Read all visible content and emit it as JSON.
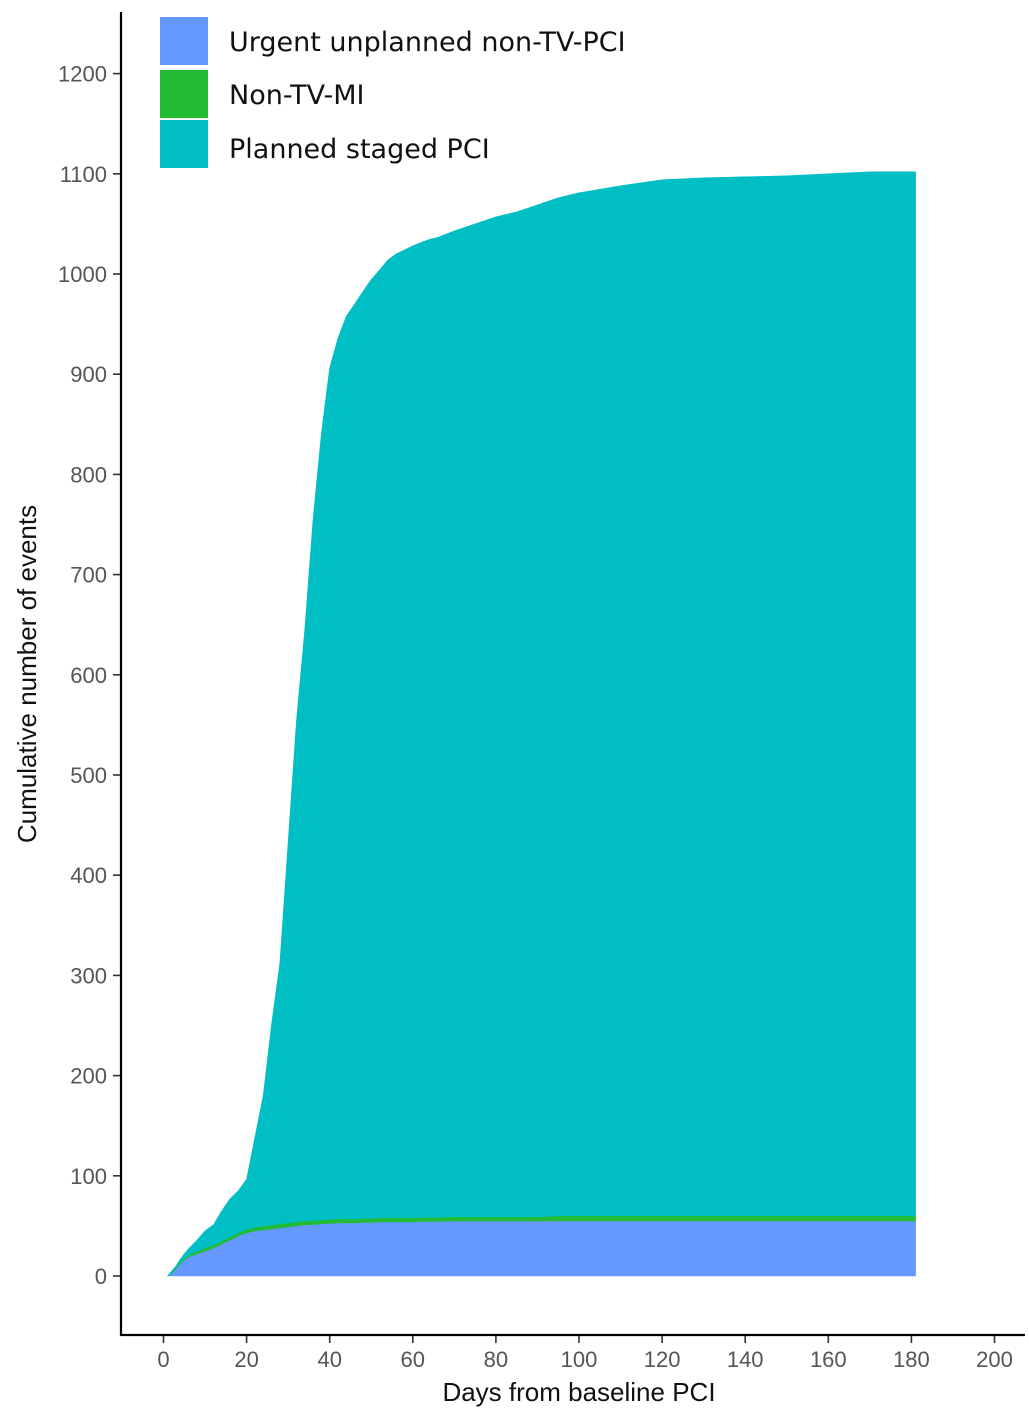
{
  "chart_data": {
    "type": "area",
    "stacked": true,
    "title": "",
    "xlabel": "Days from baseline PCI",
    "ylabel": "Cumulative number of events",
    "xlim": [
      -10,
      205
    ],
    "ylim": [
      -60,
      1260
    ],
    "x_ticks": [
      0,
      20,
      40,
      60,
      80,
      100,
      120,
      140,
      160,
      180,
      200
    ],
    "y_ticks": [
      0,
      100,
      200,
      300,
      400,
      500,
      600,
      700,
      800,
      900,
      1000,
      1100,
      1200
    ],
    "grid": false,
    "legend_position": "top-left",
    "x": [
      1,
      2,
      3,
      4,
      5,
      6,
      8,
      10,
      12,
      14,
      16,
      18,
      20,
      22,
      24,
      26,
      28,
      30,
      32,
      34,
      36,
      38,
      40,
      42,
      44,
      46,
      48,
      50,
      52,
      54,
      56,
      58,
      60,
      62,
      64,
      66,
      70,
      75,
      80,
      85,
      90,
      95,
      100,
      110,
      120,
      130,
      140,
      150,
      160,
      170,
      181
    ],
    "series": [
      {
        "name": "Urgent unplanned non-TV-PCI",
        "color": "#6699ff",
        "values": [
          0,
          3,
          7,
          12,
          16,
          19,
          22,
          25,
          28,
          32,
          36,
          40,
          43,
          45,
          46,
          47,
          48,
          49,
          50,
          51,
          51.5,
          52,
          52.5,
          53,
          53,
          53,
          53.5,
          53.5,
          54,
          54,
          54,
          54,
          54,
          54.5,
          54.5,
          54.5,
          55,
          55,
          55,
          55,
          55,
          55,
          55,
          55,
          55,
          55,
          55,
          55,
          55,
          55,
          55
        ]
      },
      {
        "name": "Non-TV-MI",
        "color": "#22bb33",
        "values": [
          0,
          1,
          1,
          1.5,
          2,
          2,
          2.5,
          3,
          3,
          3,
          3,
          3,
          3.5,
          3.5,
          4,
          4,
          4,
          4,
          4,
          4,
          4,
          4,
          4,
          4,
          4,
          4,
          4,
          4,
          4,
          4,
          4,
          4,
          4,
          4,
          4,
          4,
          4,
          4,
          4,
          4,
          4,
          5,
          5,
          5,
          5,
          5,
          5,
          5,
          5,
          5,
          5
        ]
      },
      {
        "name": "Planned staged PCI",
        "color": "#00bfc4",
        "values": [
          0,
          1,
          2,
          3,
          4,
          6,
          11,
          17,
          20,
          30,
          38,
          42,
          50,
          90,
          130,
          200,
          260,
          380,
          500,
          590,
          700,
          785,
          850,
          879,
          901,
          913,
          925,
          937,
          946,
          956,
          962,
          966,
          970,
          973,
          976,
          978,
          984,
          991,
          998,
          1003,
          1010,
          1016,
          1021,
          1028,
          1034,
          1036,
          1037,
          1038,
          1040,
          1042,
          1042
        ]
      }
    ]
  }
}
